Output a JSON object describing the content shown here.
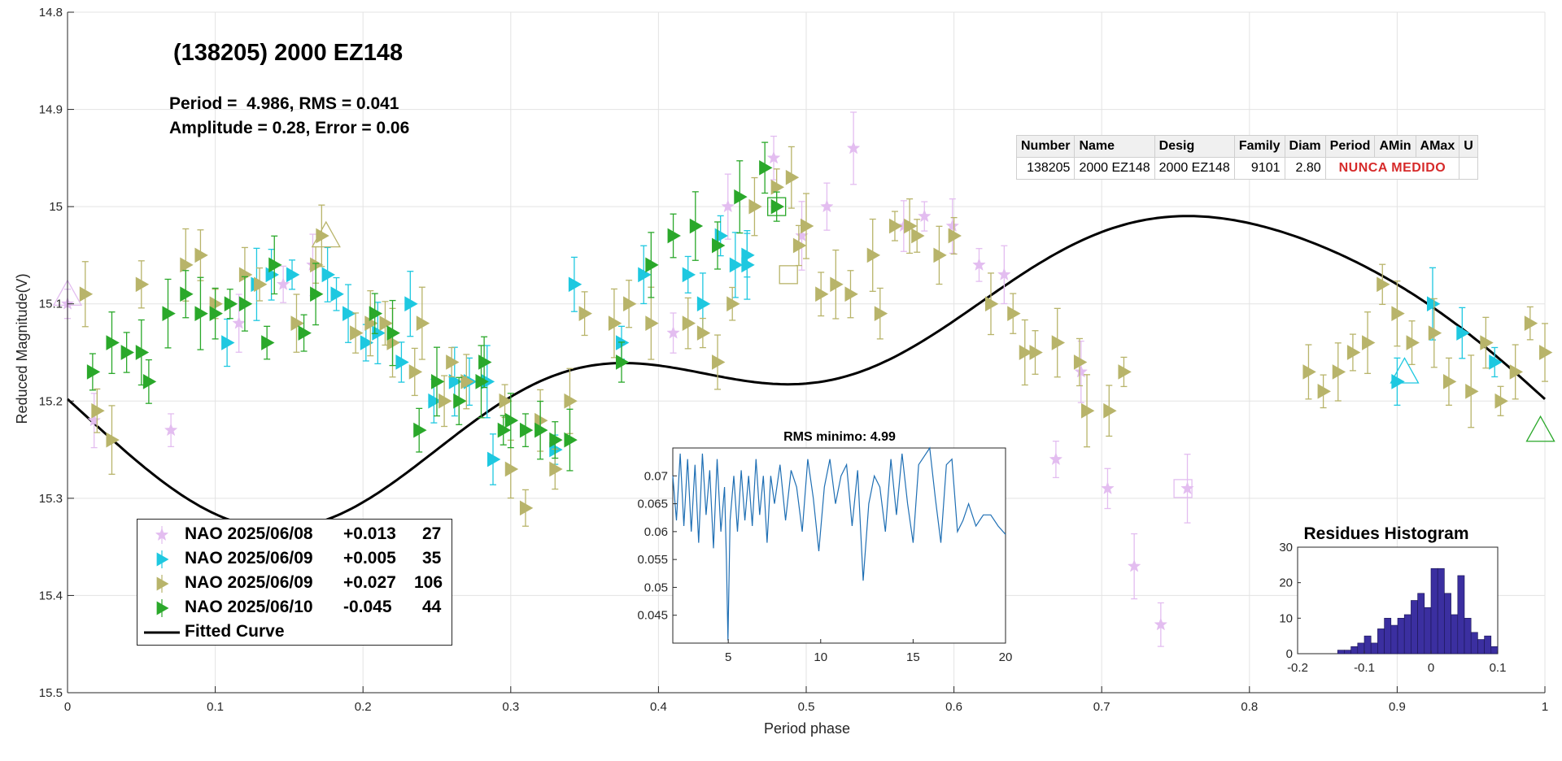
{
  "chart_data": [
    {
      "type": "scatter",
      "title": "(138205) 2000 EZ148",
      "annotations": [
        "Period =  4.986, RMS = 0.041",
        "Amplitude = 0.28, Error = 0.06"
      ],
      "xlabel": "Period phase",
      "ylabel": "Reduced Magnitude(V)",
      "xlim": [
        0,
        1
      ],
      "ylim": [
        14.8,
        15.5
      ],
      "y_reversed": true,
      "grid": true,
      "x_ticks": [
        "0",
        "0.1",
        "0.2",
        "0.3",
        "0.4",
        "0.5",
        "0.6",
        "0.7",
        "0.8",
        "0.9",
        "1"
      ],
      "y_ticks": [
        "14.8",
        "14.9",
        "15",
        "15.1",
        "15.2",
        "15.3",
        "15.4",
        "15.5"
      ],
      "fitted_curve": {
        "name": "Fitted Curve",
        "mean": 15.16,
        "terms": [
          {
            "a": 0.028,
            "b": 0.12
          },
          {
            "a": 0.03,
            "b": 0.05
          },
          {
            "a": -0.02,
            "b": 0.0
          }
        ]
      },
      "series": [
        {
          "name": "NAO 2025/06/08",
          "offset": "+0.013",
          "count": "27",
          "marker": "star",
          "color": "#e3bdf0",
          "points": [
            [
              0.0,
              15.1
            ],
            [
              0.018,
              15.22
            ],
            [
              0.07,
              15.23
            ],
            [
              0.116,
              15.12
            ],
            [
              0.146,
              15.08
            ],
            [
              0.166,
              15.06
            ],
            [
              0.41,
              15.13
            ],
            [
              0.447,
              15.0
            ],
            [
              0.478,
              14.95
            ],
            [
              0.497,
              15.03
            ],
            [
              0.514,
              15.0
            ],
            [
              0.532,
              14.94
            ],
            [
              0.566,
              15.02
            ],
            [
              0.58,
              15.01
            ],
            [
              0.599,
              15.02
            ],
            [
              0.617,
              15.06
            ],
            [
              0.634,
              15.07
            ],
            [
              0.669,
              15.26
            ],
            [
              0.686,
              15.17
            ],
            [
              0.704,
              15.29
            ],
            [
              0.722,
              15.37
            ],
            [
              0.74,
              15.43
            ],
            [
              0.758,
              15.29
            ]
          ]
        },
        {
          "name": "NAO 2025/06/09",
          "offset": "+0.005",
          "count": "35",
          "marker": "triangle-right",
          "color": "#1ec8e0",
          "points": [
            [
              0.108,
              15.14
            ],
            [
              0.128,
              15.08
            ],
            [
              0.138,
              15.07
            ],
            [
              0.152,
              15.07
            ],
            [
              0.176,
              15.07
            ],
            [
              0.182,
              15.09
            ],
            [
              0.19,
              15.11
            ],
            [
              0.202,
              15.14
            ],
            [
              0.21,
              15.13
            ],
            [
              0.226,
              15.16
            ],
            [
              0.232,
              15.1
            ],
            [
              0.248,
              15.2
            ],
            [
              0.262,
              15.18
            ],
            [
              0.272,
              15.18
            ],
            [
              0.284,
              15.18
            ],
            [
              0.288,
              15.26
            ],
            [
              0.33,
              15.25
            ],
            [
              0.343,
              15.08
            ],
            [
              0.375,
              15.14
            ],
            [
              0.39,
              15.07
            ],
            [
              0.42,
              15.07
            ],
            [
              0.43,
              15.1
            ],
            [
              0.442,
              15.03
            ],
            [
              0.452,
              15.06
            ],
            [
              0.46,
              15.05
            ],
            [
              0.46,
              15.06
            ],
            [
              0.9,
              15.18
            ],
            [
              0.924,
              15.1
            ],
            [
              0.944,
              15.13
            ],
            [
              0.966,
              15.16
            ]
          ]
        },
        {
          "name": "NAO 2025/06/09",
          "offset": "+0.027",
          "count": "106",
          "marker": "triangle-right",
          "color": "#b8b46a",
          "points": [
            [
              0.012,
              15.09
            ],
            [
              0.02,
              15.21
            ],
            [
              0.03,
              15.24
            ],
            [
              0.05,
              15.08
            ],
            [
              0.08,
              15.06
            ],
            [
              0.09,
              15.05
            ],
            [
              0.1,
              15.1
            ],
            [
              0.12,
              15.07
            ],
            [
              0.13,
              15.08
            ],
            [
              0.155,
              15.12
            ],
            [
              0.168,
              15.06
            ],
            [
              0.172,
              15.03
            ],
            [
              0.195,
              15.13
            ],
            [
              0.205,
              15.12
            ],
            [
              0.215,
              15.12
            ],
            [
              0.22,
              15.14
            ],
            [
              0.235,
              15.17
            ],
            [
              0.24,
              15.12
            ],
            [
              0.255,
              15.2
            ],
            [
              0.26,
              15.16
            ],
            [
              0.27,
              15.18
            ],
            [
              0.296,
              15.2
            ],
            [
              0.3,
              15.27
            ],
            [
              0.31,
              15.31
            ],
            [
              0.32,
              15.22
            ],
            [
              0.33,
              15.27
            ],
            [
              0.34,
              15.2
            ],
            [
              0.35,
              15.11
            ],
            [
              0.37,
              15.12
            ],
            [
              0.38,
              15.1
            ],
            [
              0.395,
              15.12
            ],
            [
              0.42,
              15.12
            ],
            [
              0.43,
              15.13
            ],
            [
              0.44,
              15.16
            ],
            [
              0.45,
              15.1
            ],
            [
              0.465,
              15.0
            ],
            [
              0.48,
              14.98
            ],
            [
              0.49,
              14.97
            ],
            [
              0.495,
              15.04
            ],
            [
              0.5,
              15.02
            ],
            [
              0.51,
              15.09
            ],
            [
              0.52,
              15.08
            ],
            [
              0.53,
              15.09
            ],
            [
              0.545,
              15.05
            ],
            [
              0.55,
              15.11
            ],
            [
              0.56,
              15.02
            ],
            [
              0.57,
              15.02
            ],
            [
              0.575,
              15.03
            ],
            [
              0.59,
              15.05
            ],
            [
              0.6,
              15.03
            ],
            [
              0.625,
              15.1
            ],
            [
              0.64,
              15.11
            ],
            [
              0.648,
              15.15
            ],
            [
              0.655,
              15.15
            ],
            [
              0.67,
              15.14
            ],
            [
              0.685,
              15.16
            ],
            [
              0.69,
              15.21
            ],
            [
              0.705,
              15.21
            ],
            [
              0.715,
              15.17
            ],
            [
              0.84,
              15.17
            ],
            [
              0.85,
              15.19
            ],
            [
              0.86,
              15.17
            ],
            [
              0.87,
              15.15
            ],
            [
              0.88,
              15.14
            ],
            [
              0.89,
              15.08
            ],
            [
              0.9,
              15.11
            ],
            [
              0.91,
              15.14
            ],
            [
              0.925,
              15.13
            ],
            [
              0.935,
              15.18
            ],
            [
              0.95,
              15.19
            ],
            [
              0.96,
              15.14
            ],
            [
              0.97,
              15.2
            ],
            [
              0.98,
              15.17
            ],
            [
              0.99,
              15.12
            ],
            [
              1.0,
              15.15
            ]
          ]
        },
        {
          "name": "NAO 2025/06/10",
          "offset": "-0.045",
          "count": "44",
          "marker": "triangle-right",
          "color": "#2aa82a",
          "points": [
            [
              0.017,
              15.17
            ],
            [
              0.03,
              15.14
            ],
            [
              0.04,
              15.15
            ],
            [
              0.05,
              15.15
            ],
            [
              0.055,
              15.18
            ],
            [
              0.068,
              15.11
            ],
            [
              0.08,
              15.09
            ],
            [
              0.09,
              15.11
            ],
            [
              0.1,
              15.11
            ],
            [
              0.11,
              15.1
            ],
            [
              0.12,
              15.1
            ],
            [
              0.135,
              15.14
            ],
            [
              0.14,
              15.06
            ],
            [
              0.16,
              15.13
            ],
            [
              0.168,
              15.09
            ],
            [
              0.208,
              15.11
            ],
            [
              0.22,
              15.13
            ],
            [
              0.238,
              15.23
            ],
            [
              0.25,
              15.18
            ],
            [
              0.265,
              15.2
            ],
            [
              0.28,
              15.18
            ],
            [
              0.282,
              15.16
            ],
            [
              0.295,
              15.23
            ],
            [
              0.3,
              15.22
            ],
            [
              0.31,
              15.23
            ],
            [
              0.32,
              15.23
            ],
            [
              0.33,
              15.24
            ],
            [
              0.34,
              15.24
            ],
            [
              0.375,
              15.16
            ],
            [
              0.395,
              15.06
            ],
            [
              0.41,
              15.03
            ],
            [
              0.425,
              15.02
            ],
            [
              0.44,
              15.04
            ],
            [
              0.455,
              14.99
            ],
            [
              0.472,
              14.96
            ],
            [
              0.48,
              15.0
            ]
          ]
        },
        {
          "name": "Fitted Curve",
          "marker": "line",
          "color": "#000000"
        }
      ],
      "highlighted_points": [
        {
          "x": 0.0,
          "y": 15.09,
          "marker": "triangle-up",
          "color": "#e3bdf0"
        },
        {
          "x": 0.175,
          "y": 15.03,
          "marker": "triangle-up",
          "color": "#b8b46a"
        },
        {
          "x": 0.48,
          "y": 15.0,
          "marker": "square",
          "color": "#2aa82a"
        },
        {
          "x": 0.488,
          "y": 15.07,
          "marker": "square",
          "color": "#b8b46a"
        },
        {
          "x": 0.755,
          "y": 15.29,
          "marker": "square",
          "color": "#e3bdf0"
        },
        {
          "x": 0.905,
          "y": 15.17,
          "marker": "triangle-up",
          "color": "#1ec8e0"
        },
        {
          "x": 0.997,
          "y": 15.23,
          "marker": "triangle-up",
          "color": "#2aa82a"
        }
      ]
    },
    {
      "type": "line",
      "title": "RMS minimo: 4.99",
      "xlim": [
        2,
        20
      ],
      "ylim": [
        0.04,
        0.075
      ],
      "x_ticks": [
        "5",
        "10",
        "15",
        "20"
      ],
      "y_ticks": [
        "0.045",
        "0.05",
        "0.055",
        "0.06",
        "0.065",
        "0.07"
      ],
      "series": [
        {
          "name": "RMS",
          "color": "#1f6fb4",
          "x": [
            2.0,
            2.2,
            2.4,
            2.6,
            2.8,
            3.0,
            3.2,
            3.4,
            3.6,
            3.8,
            4.0,
            4.2,
            4.4,
            4.6,
            4.8,
            4.9,
            4.986,
            5.1,
            5.3,
            5.5,
            5.7,
            5.9,
            6.1,
            6.3,
            6.5,
            6.7,
            6.9,
            7.1,
            7.3,
            7.5,
            7.8,
            8.1,
            8.4,
            8.7,
            9.0,
            9.3,
            9.6,
            9.9,
            10.2,
            10.5,
            10.8,
            11.1,
            11.4,
            11.7,
            12.0,
            12.3,
            12.6,
            12.9,
            13.2,
            13.5,
            13.8,
            14.1,
            14.4,
            14.7,
            15.0,
            15.3,
            15.6,
            15.9,
            16.2,
            16.5,
            16.8,
            17.1,
            17.4,
            17.7,
            18.0,
            18.4,
            18.8,
            19.2,
            19.6,
            20.0
          ],
          "values": [
            0.07,
            0.062,
            0.074,
            0.061,
            0.073,
            0.06,
            0.072,
            0.058,
            0.074,
            0.063,
            0.071,
            0.057,
            0.073,
            0.06,
            0.068,
            0.055,
            0.0405,
            0.062,
            0.07,
            0.06,
            0.071,
            0.062,
            0.07,
            0.061,
            0.073,
            0.063,
            0.07,
            0.058,
            0.07,
            0.065,
            0.072,
            0.062,
            0.071,
            0.068,
            0.06,
            0.073,
            0.066,
            0.0565,
            0.068,
            0.073,
            0.065,
            0.07,
            0.072,
            0.061,
            0.071,
            0.0512,
            0.065,
            0.07,
            0.068,
            0.06,
            0.073,
            0.063,
            0.074,
            0.065,
            0.058,
            0.072,
            0.0735,
            0.075,
            0.066,
            0.058,
            0.072,
            0.073,
            0.06,
            0.062,
            0.065,
            0.061,
            0.063,
            0.063,
            0.061,
            0.0595
          ]
        }
      ]
    },
    {
      "type": "bar",
      "title": "Residues Histogram",
      "xlim": [
        -0.2,
        0.1
      ],
      "ylim": [
        0,
        30
      ],
      "x_ticks": [
        "-0.2",
        "-0.1",
        "0",
        "0.1"
      ],
      "y_ticks": [
        "0",
        "10",
        "20",
        "30"
      ],
      "color": "#3b2fa0",
      "bins": [
        -0.135,
        -0.125,
        -0.115,
        -0.105,
        -0.095,
        -0.085,
        -0.075,
        -0.065,
        -0.055,
        -0.045,
        -0.035,
        -0.025,
        -0.015,
        -0.005,
        0.005,
        0.015,
        0.025,
        0.035,
        0.045,
        0.055,
        0.065,
        0.075,
        0.085,
        0.095
      ],
      "values": [
        1,
        1,
        2,
        3,
        5,
        3,
        7,
        10,
        8,
        10,
        11,
        15,
        17,
        13,
        24,
        24,
        17,
        11,
        22,
        10,
        6,
        4,
        5,
        2
      ]
    }
  ],
  "legend": [
    {
      "label": "NAO 2025/06/08",
      "offset": "+0.013",
      "count": "27",
      "marker": "star",
      "color": "#e3bdf0"
    },
    {
      "label": "NAO 2025/06/09",
      "offset": "+0.005",
      "count": "35",
      "marker": "triangle-right",
      "color": "#1ec8e0"
    },
    {
      "label": "NAO 2025/06/09",
      "offset": "+0.027",
      "count": "106",
      "marker": "triangle-right",
      "color": "#b8b46a"
    },
    {
      "label": "NAO 2025/06/10",
      "offset": "-0.045",
      "count": "44",
      "marker": "triangle-right",
      "color": "#2aa82a"
    },
    {
      "label": "Fitted Curve",
      "offset": "",
      "count": "",
      "marker": "line",
      "color": "#000000"
    }
  ],
  "info_table": {
    "headers": [
      "Number",
      "Name",
      "Desig",
      "Family",
      "Diam",
      "Period",
      "AMin",
      "AMax",
      "U"
    ],
    "row": {
      "number": "138205",
      "name": "2000 EZ148",
      "desig": "2000 EZ148",
      "family": "9101",
      "diam": "2.80",
      "status": "NUNCA MEDIDO"
    }
  }
}
